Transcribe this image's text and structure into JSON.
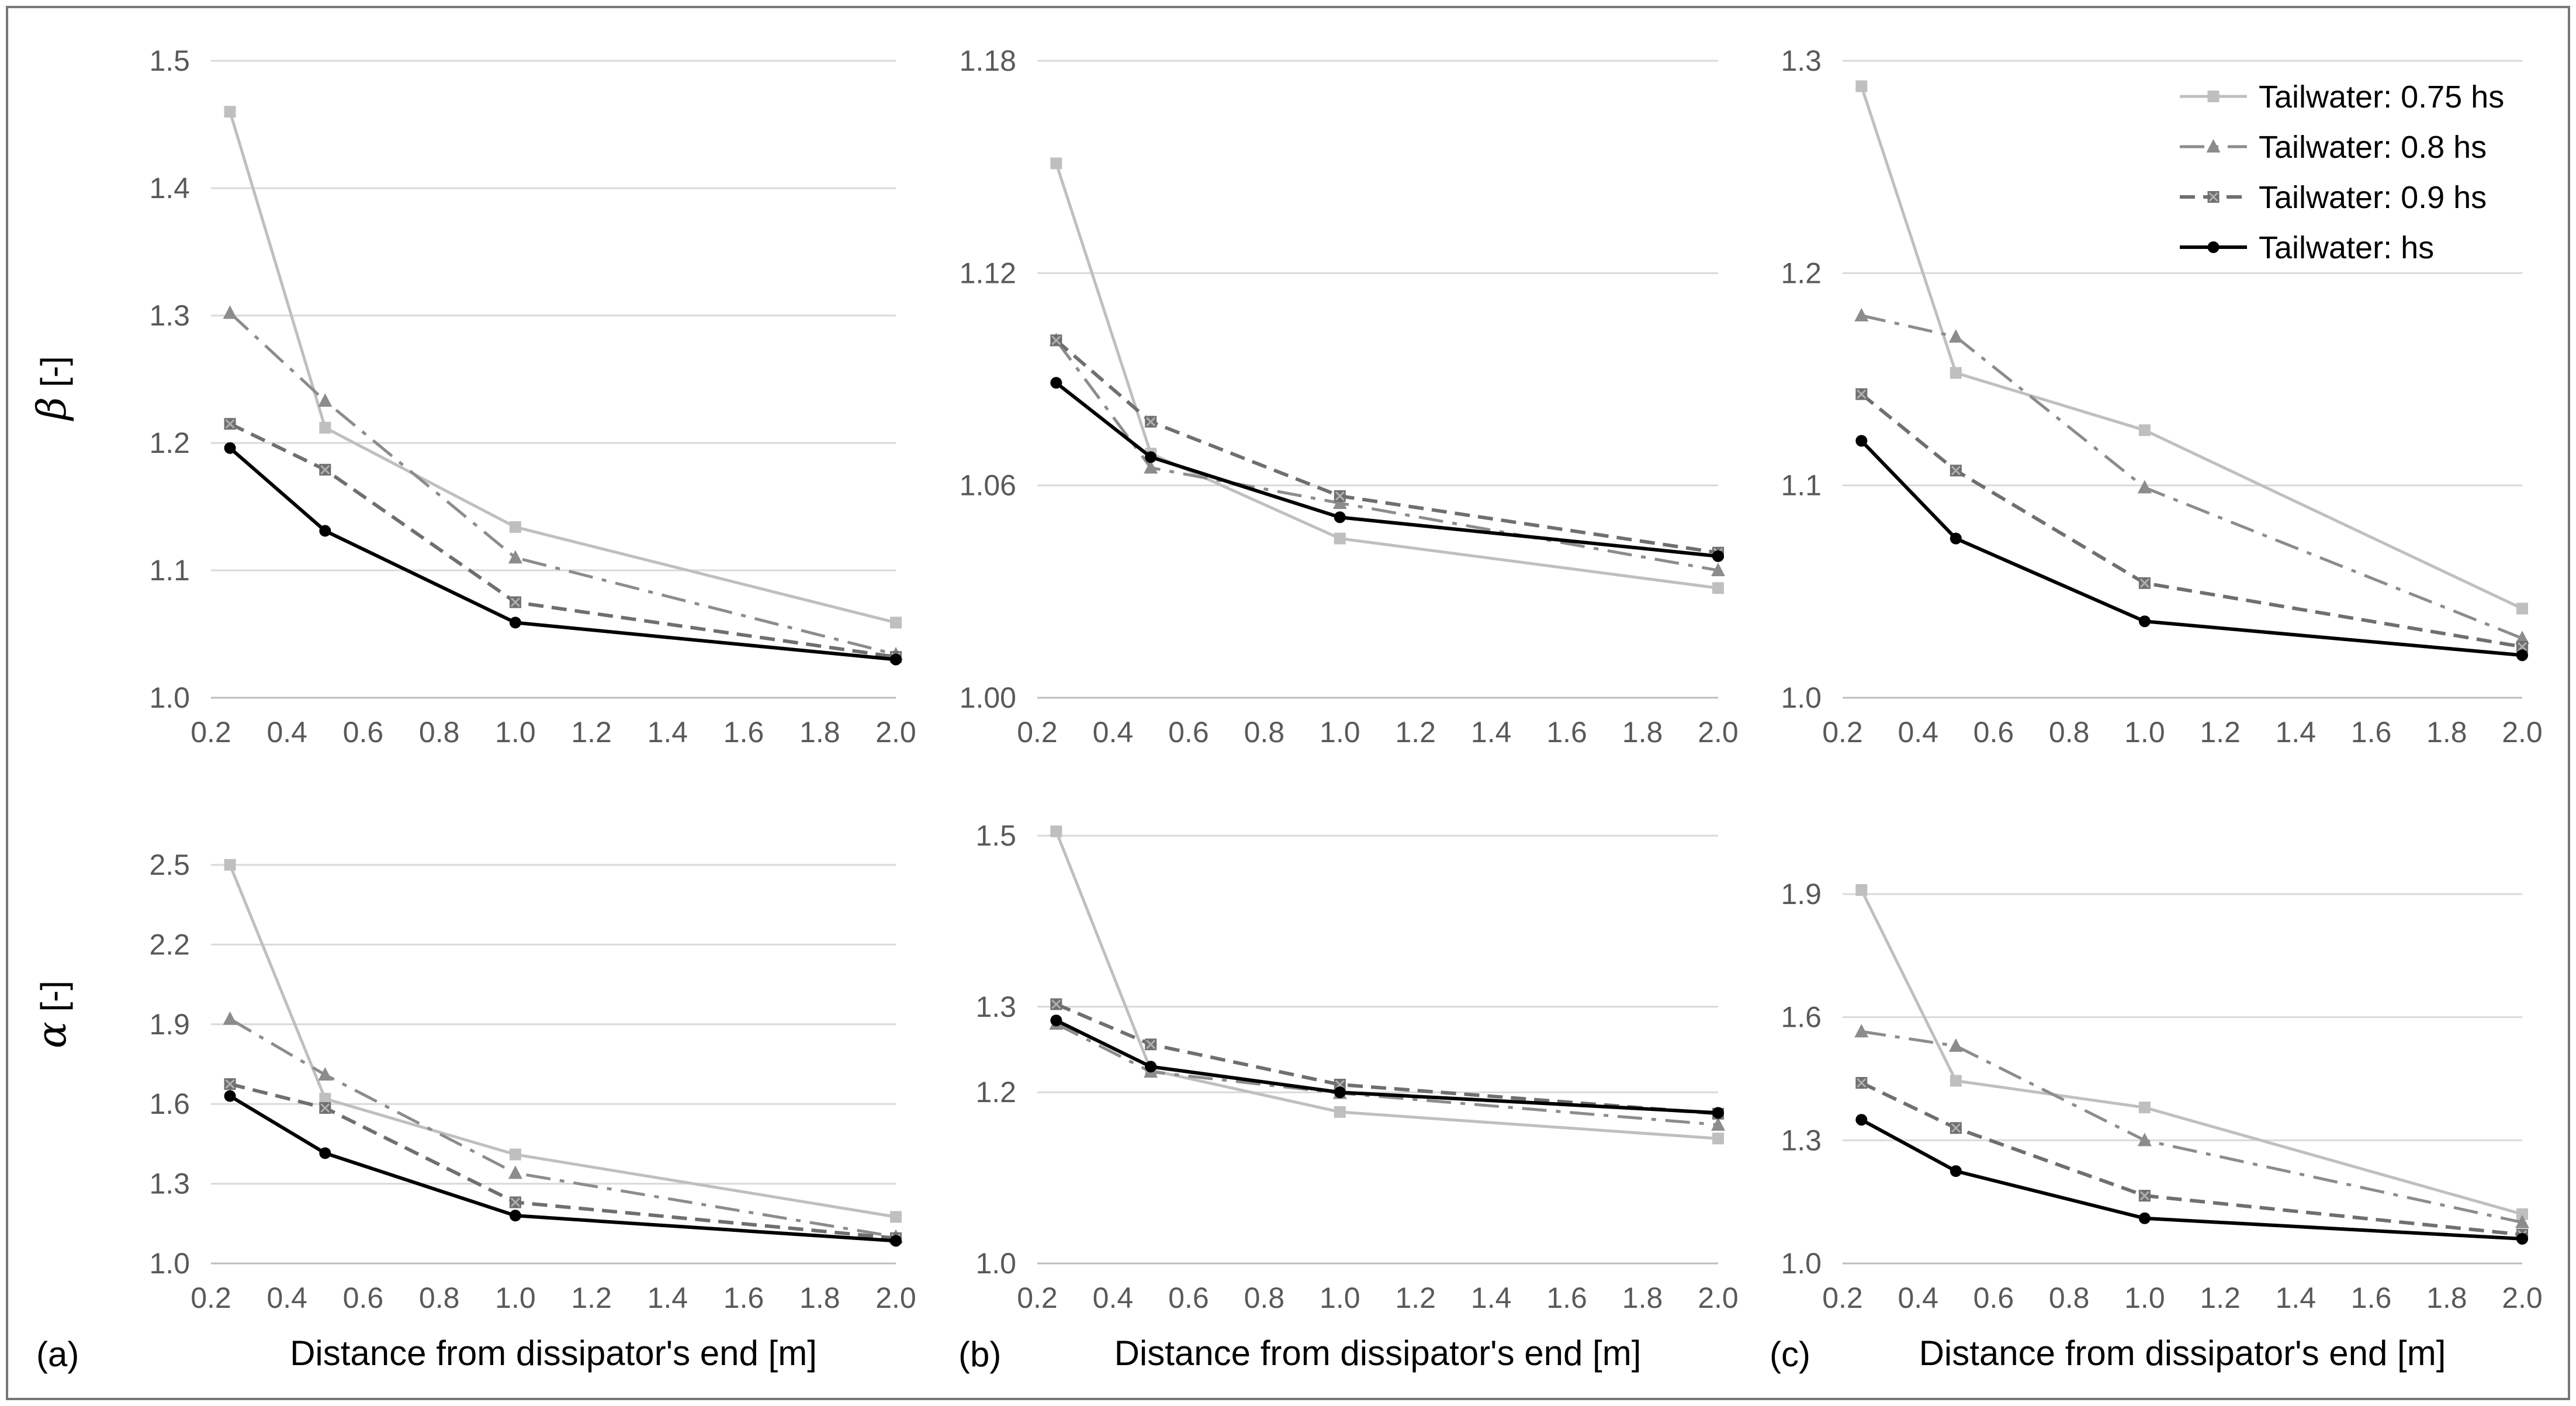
{
  "figure": {
    "panel_labels": [
      "(a)",
      "(b)",
      "(c)"
    ],
    "legend": [
      "Tailwater: 0.75 hs",
      "Tailwater: 0.8 hs",
      "Tailwater: 0.9 hs",
      "Tailwater: hs"
    ],
    "series_colors": [
      "#bfbfbf",
      "#8c8c8c",
      "#6f6f6f",
      "#000000"
    ],
    "series_styles": [
      "solid",
      "dashdot",
      "dash",
      "solid"
    ],
    "series_markers": [
      "square",
      "triangle",
      "x-square",
      "circle"
    ],
    "ylabel_top": {
      "symbol": "β",
      "unit": " [-]"
    },
    "ylabel_bottom": {
      "symbol": "α",
      "unit": " [-]"
    }
  },
  "chart_data": [
    {
      "id": "a-beta",
      "type": "line",
      "panel": "(a)",
      "title": "",
      "xlabel": "",
      "ylabel": "β [-]",
      "x": [
        0.25,
        0.5,
        1.0,
        2.0
      ],
      "xlim": [
        0.2,
        2.0
      ],
      "xticks": [
        "0.2",
        "0.4",
        "0.6",
        "0.8",
        "1.0",
        "1.2",
        "1.4",
        "1.6",
        "1.8",
        "2.0"
      ],
      "ylim": [
        1.0,
        1.5
      ],
      "yticks": [
        "1.0",
        "1.1",
        "1.2",
        "1.3",
        "1.4",
        "1.5"
      ],
      "series": [
        {
          "name": "Tailwater: 0.75 hs",
          "values": [
            1.46,
            1.212,
            1.134,
            1.059
          ]
        },
        {
          "name": "Tailwater: 0.8 hs",
          "values": [
            1.302,
            1.233,
            1.11,
            1.034
          ]
        },
        {
          "name": "Tailwater: 0.9 hs",
          "values": [
            1.215,
            1.179,
            1.075,
            1.032
          ]
        },
        {
          "name": "Tailwater: hs",
          "values": [
            1.196,
            1.131,
            1.059,
            1.03
          ]
        }
      ]
    },
    {
      "id": "b-beta",
      "type": "line",
      "panel": "(b)",
      "title": "",
      "xlabel": "",
      "ylabel": "",
      "x": [
        0.25,
        0.5,
        1.0,
        2.0
      ],
      "xlim": [
        0.2,
        2.0
      ],
      "xticks": [
        "0.2",
        "0.4",
        "0.6",
        "0.8",
        "1.0",
        "1.2",
        "1.4",
        "1.6",
        "1.8",
        "2.0"
      ],
      "ylim": [
        1.0,
        1.18
      ],
      "yticks": [
        "1.00",
        "1.06",
        "1.12",
        "1.18"
      ],
      "series": [
        {
          "name": "Tailwater: 0.75 hs",
          "values": [
            1.151,
            1.069,
            1.045,
            1.031
          ]
        },
        {
          "name": "Tailwater: 0.8 hs",
          "values": [
            1.101,
            1.065,
            1.055,
            1.036
          ]
        },
        {
          "name": "Tailwater: 0.9 hs",
          "values": [
            1.101,
            1.078,
            1.057,
            1.041
          ]
        },
        {
          "name": "Tailwater: hs",
          "values": [
            1.089,
            1.068,
            1.051,
            1.04
          ]
        }
      ]
    },
    {
      "id": "c-beta",
      "type": "line",
      "panel": "(c)",
      "title": "",
      "xlabel": "",
      "ylabel": "",
      "x": [
        0.25,
        0.5,
        1.0,
        2.0
      ],
      "xlim": [
        0.2,
        2.0
      ],
      "xticks": [
        "0.2",
        "0.4",
        "0.6",
        "0.8",
        "1.0",
        "1.2",
        "1.4",
        "1.6",
        "1.8",
        "2.0"
      ],
      "ylim": [
        1.0,
        1.3
      ],
      "yticks": [
        "1.0",
        "1.1",
        "1.2",
        "1.3"
      ],
      "series": [
        {
          "name": "Tailwater: 0.75 hs",
          "values": [
            1.288,
            1.153,
            1.126,
            1.042
          ]
        },
        {
          "name": "Tailwater: 0.8 hs",
          "values": [
            1.18,
            1.17,
            1.099,
            1.028
          ]
        },
        {
          "name": "Tailwater: 0.9 hs",
          "values": [
            1.143,
            1.107,
            1.054,
            1.024
          ]
        },
        {
          "name": "Tailwater: hs",
          "values": [
            1.121,
            1.075,
            1.036,
            1.02
          ]
        }
      ]
    },
    {
      "id": "a-alpha",
      "type": "line",
      "panel": "(a)",
      "title": "",
      "xlabel": "Distance from dissipator's end [m]",
      "ylabel": "α [-]",
      "x": [
        0.25,
        0.5,
        1.0,
        2.0
      ],
      "xlim": [
        0.2,
        2.0
      ],
      "xticks": [
        "0.2",
        "0.4",
        "0.6",
        "0.8",
        "1.0",
        "1.2",
        "1.4",
        "1.6",
        "1.8",
        "2.0"
      ],
      "ylim": [
        1.0,
        2.5
      ],
      "yticks": [
        "1.0",
        "1.3",
        "1.6",
        "1.9",
        "2.2",
        "2.5"
      ],
      "series": [
        {
          "name": "Tailwater: 0.75 hs",
          "values": [
            2.5,
            1.62,
            1.41,
            1.175
          ]
        },
        {
          "name": "Tailwater: 0.8 hs",
          "values": [
            1.92,
            1.71,
            1.34,
            1.1
          ]
        },
        {
          "name": "Tailwater: 0.9 hs",
          "values": [
            1.675,
            1.585,
            1.23,
            1.095
          ]
        },
        {
          "name": "Tailwater: hs",
          "values": [
            1.63,
            1.415,
            1.18,
            1.085
          ]
        }
      ]
    },
    {
      "id": "b-alpha",
      "type": "line",
      "panel": "(b)",
      "title": "",
      "xlabel": "Distance from dissipator's end [m]",
      "ylabel": "",
      "x": [
        0.25,
        0.5,
        1.0,
        2.0
      ],
      "xlim": [
        0.2,
        2.0
      ],
      "xticks": [
        "0.2",
        "0.4",
        "0.6",
        "0.8",
        "1.0",
        "1.2",
        "1.4",
        "1.6",
        "1.8",
        "2.0"
      ],
      "ylim": [
        1.0,
        1.5
      ],
      "yticks": [
        "1.0",
        "1.2",
        "1.3",
        "1.5"
      ],
      "series": [
        {
          "name": "Tailwater: 0.75 hs",
          "values": [
            1.505,
            1.226,
            1.177,
            1.146
          ]
        },
        {
          "name": "Tailwater: 0.8 hs",
          "values": [
            1.28,
            1.224,
            1.199,
            1.162
          ]
        },
        {
          "name": "Tailwater: 0.9 hs",
          "values": [
            1.303,
            1.256,
            1.209,
            1.175
          ]
        },
        {
          "name": "Tailwater: hs",
          "values": [
            1.284,
            1.23,
            1.2,
            1.176
          ]
        }
      ]
    },
    {
      "id": "c-alpha",
      "type": "line",
      "panel": "(c)",
      "title": "",
      "xlabel": "Distance from dissipator's end [m]",
      "ylabel": "",
      "x": [
        0.25,
        0.5,
        1.0,
        2.0
      ],
      "xlim": [
        0.2,
        2.0
      ],
      "xticks": [
        "0.2",
        "0.4",
        "0.6",
        "0.8",
        "1.0",
        "1.2",
        "1.4",
        "1.6",
        "1.8",
        "2.0"
      ],
      "ylim": [
        1.0,
        1.9
      ],
      "yticks": [
        "1.0",
        "1.3",
        "1.6",
        "1.9"
      ],
      "series": [
        {
          "name": "Tailwater: 0.75 hs",
          "values": [
            1.91,
            1.445,
            1.38,
            1.12
          ]
        },
        {
          "name": "Tailwater: 0.8 hs",
          "values": [
            1.565,
            1.53,
            1.3,
            1.1
          ]
        },
        {
          "name": "Tailwater: 0.9 hs",
          "values": [
            1.44,
            1.33,
            1.165,
            1.07
          ]
        },
        {
          "name": "Tailwater: hs",
          "values": [
            1.35,
            1.225,
            1.11,
            1.06
          ]
        }
      ]
    }
  ]
}
